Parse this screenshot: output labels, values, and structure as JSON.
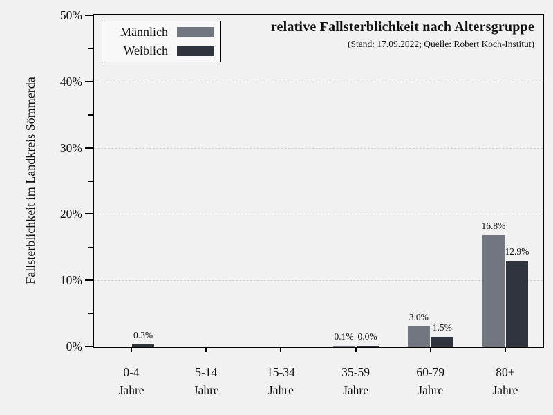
{
  "page": {
    "background": "#f1f1f2"
  },
  "chart_data": {
    "type": "bar",
    "title": "relative Fallsterblichkeit nach Altersgruppe",
    "subtitle": "(Stand: 17.09.2022; Quelle: Robert Koch-Institut)",
    "ylabel": "Fallsterblichkeit im Landkreis Sömmerda",
    "ylim": [
      0,
      50
    ],
    "ytick_values": [
      0,
      10,
      20,
      30,
      40,
      50
    ],
    "ytick_labels": [
      "0%",
      "10%",
      "20%",
      "30%",
      "40%",
      "50%"
    ],
    "ytick_minor_values": [
      5,
      15,
      25,
      35,
      45
    ],
    "grid": {
      "values": [
        10,
        20,
        30,
        40
      ],
      "style": "dashed"
    },
    "categories": [
      "0-4",
      "5-14",
      "15-34",
      "35-59",
      "60-79",
      "80+"
    ],
    "category_line2": "Jahre",
    "legend_position": "top-left",
    "series": [
      {
        "name": "Männlich",
        "color": "#71767f",
        "values": [
          0,
          0,
          0,
          0.1,
          3.0,
          16.8
        ],
        "bar_labels": [
          null,
          null,
          null,
          "0.1%",
          "3.0%",
          "16.8%"
        ]
      },
      {
        "name": "Weiblich",
        "color": "#2f343d",
        "values": [
          0.3,
          0,
          0,
          0.04,
          1.5,
          12.9
        ],
        "bar_labels": [
          "0.3%",
          null,
          null,
          "0.0%",
          "1.5%",
          "12.9%"
        ]
      }
    ]
  }
}
